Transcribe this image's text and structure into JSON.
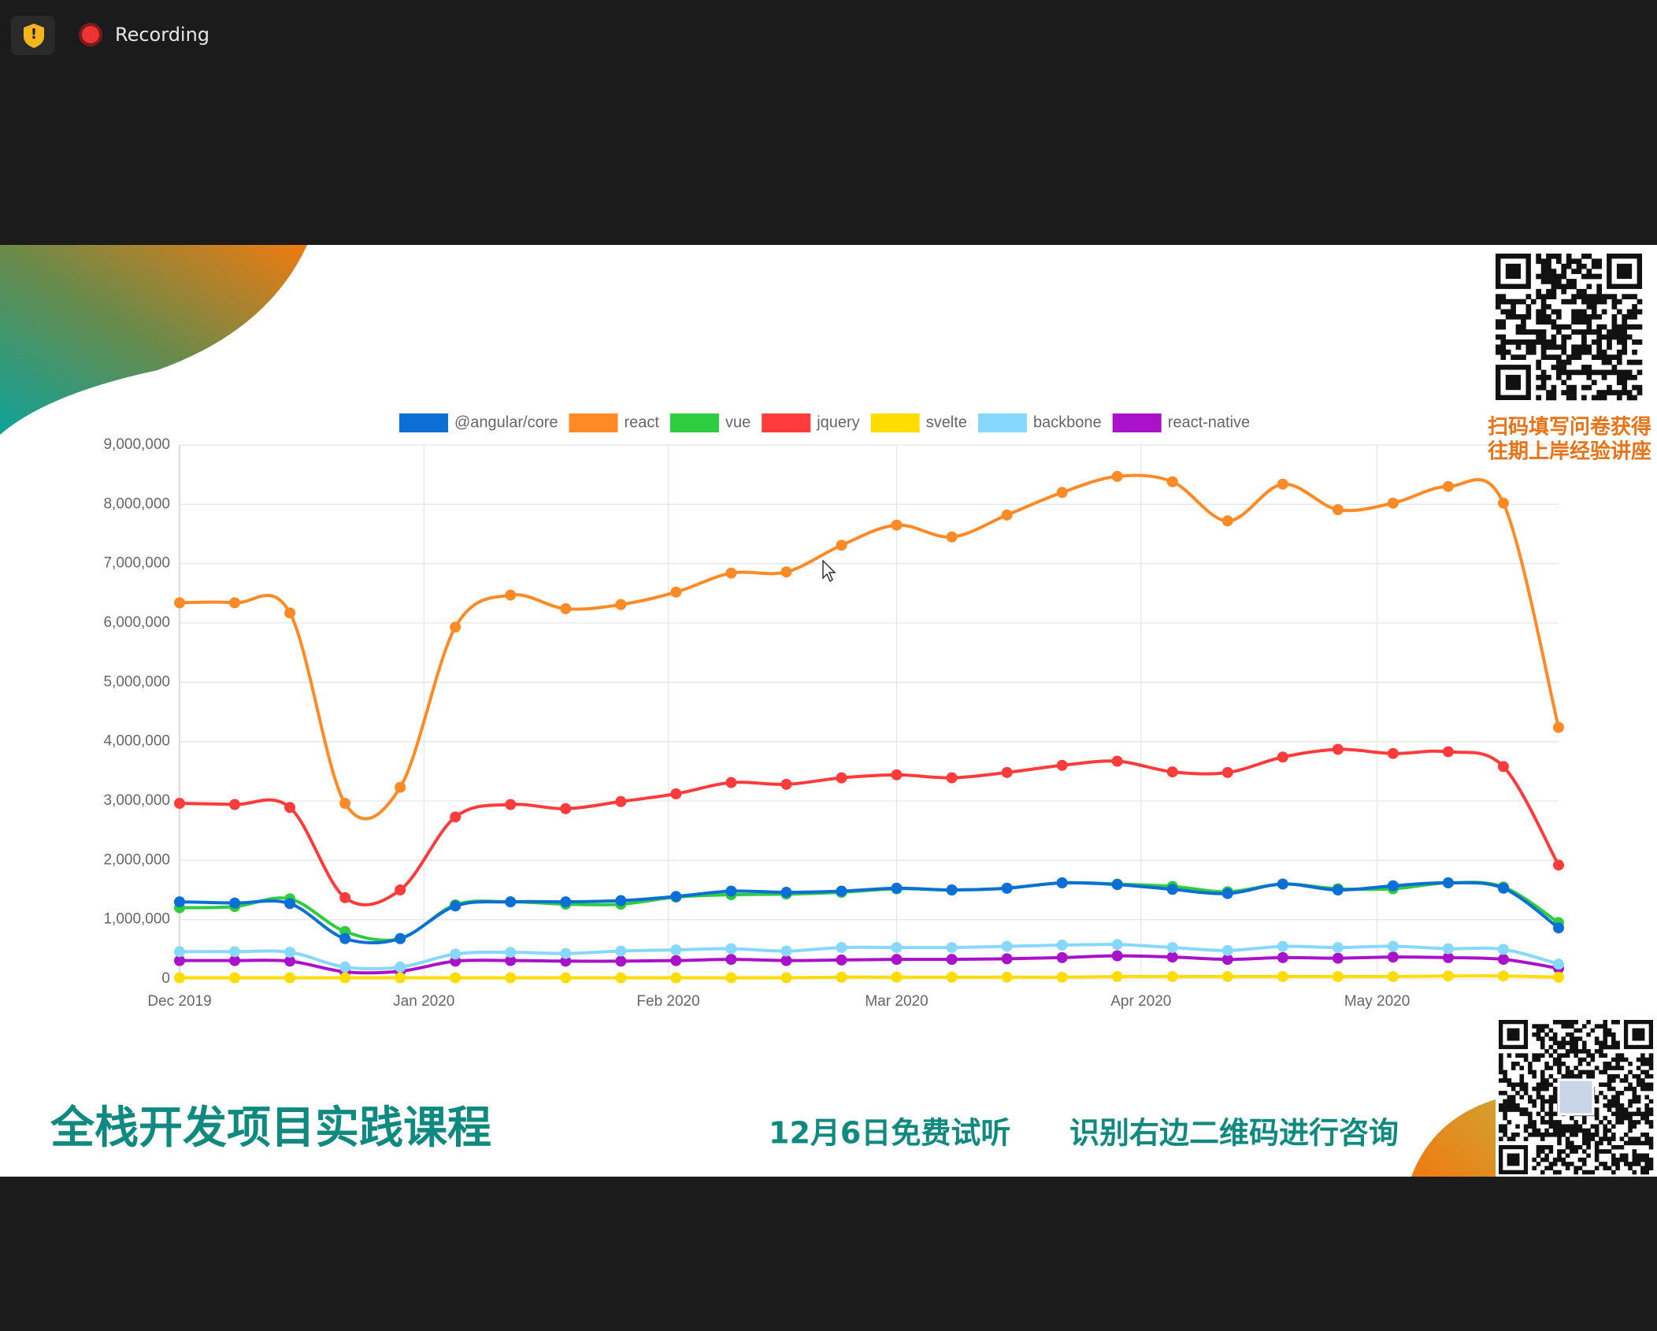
{
  "toolbar": {
    "status": "Recording"
  },
  "qr_caption": [
    "扫码填写问卷获得",
    "往期上岸经验讲座"
  ],
  "footer": {
    "course": "全栈开发项目实践课程",
    "trial": "12月6日免费试听",
    "contact": "识别右边二维码进行咨询"
  },
  "chart_data": {
    "type": "line",
    "x": [
      0,
      1,
      2,
      3,
      4,
      5,
      6,
      7,
      8,
      9,
      10,
      11,
      12,
      13,
      14,
      15,
      16,
      17,
      18,
      19,
      20,
      21,
      22,
      23,
      24,
      25
    ],
    "xlim": [
      0,
      25
    ],
    "xticks": [
      {
        "value": 0,
        "label": "Dec 2019"
      },
      {
        "value": 4.43,
        "label": "Jan 2020"
      },
      {
        "value": 8.86,
        "label": "Feb 2020"
      },
      {
        "value": 13,
        "label": "Mar 2020"
      },
      {
        "value": 17.43,
        "label": "Apr 2020"
      },
      {
        "value": 21.71,
        "label": "May 2020"
      }
    ],
    "ylim": [
      0,
      9000000
    ],
    "yticks": [
      0,
      {
        "value": 1000000,
        "label": "1,000,000"
      },
      {
        "value": 2000000,
        "label": "2,000,000"
      },
      {
        "value": 3000000,
        "label": "3,000,000"
      },
      {
        "value": 4000000,
        "label": "4,000,000"
      },
      {
        "value": 5000000,
        "label": "5,000,000"
      },
      {
        "value": 6000000,
        "label": "6,000,000"
      },
      {
        "value": 7000000,
        "label": "7,000,000"
      },
      {
        "value": 8000000,
        "label": "8,000,000"
      },
      {
        "value": 9000000,
        "label": "9,000,000"
      }
    ],
    "grid": true,
    "legend": "top",
    "series": [
      {
        "name": "@angular/core",
        "color": "#0b6fd6",
        "values": [
          1300000,
          1280000,
          1270000,
          680000,
          680000,
          1230000,
          1300000,
          1300000,
          1320000,
          1390000,
          1480000,
          1460000,
          1480000,
          1530000,
          1500000,
          1530000,
          1620000,
          1590000,
          1510000,
          1440000,
          1600000,
          1500000,
          1570000,
          1620000,
          1530000,
          860000
        ]
      },
      {
        "name": "react",
        "color": "#ff8a26",
        "values": [
          6340000,
          6340000,
          6170000,
          2960000,
          3230000,
          5930000,
          6470000,
          6240000,
          6310000,
          6520000,
          6840000,
          6860000,
          7310000,
          7650000,
          7450000,
          7820000,
          8200000,
          8470000,
          8380000,
          7720000,
          8340000,
          7910000,
          8020000,
          8300000,
          8020000,
          4240000
        ]
      },
      {
        "name": "vue",
        "color": "#2ecc40",
        "values": [
          1200000,
          1220000,
          1350000,
          800000,
          680000,
          1250000,
          1300000,
          1260000,
          1260000,
          1380000,
          1420000,
          1430000,
          1460000,
          1520000,
          1500000,
          1530000,
          1620000,
          1600000,
          1560000,
          1470000,
          1600000,
          1520000,
          1520000,
          1620000,
          1550000,
          950000
        ]
      },
      {
        "name": "jquery",
        "color": "#ff3b3b",
        "values": [
          2960000,
          2940000,
          2890000,
          1370000,
          1500000,
          2730000,
          2940000,
          2870000,
          2990000,
          3120000,
          3310000,
          3280000,
          3390000,
          3440000,
          3390000,
          3480000,
          3600000,
          3670000,
          3490000,
          3480000,
          3740000,
          3870000,
          3800000,
          3830000,
          3580000,
          1920000
        ]
      },
      {
        "name": "svelte",
        "color": "#ffdd00",
        "values": [
          20000,
          20000,
          20000,
          20000,
          20000,
          20000,
          20000,
          20000,
          20000,
          20000,
          20000,
          20000,
          30000,
          30000,
          30000,
          30000,
          30000,
          40000,
          40000,
          40000,
          40000,
          40000,
          40000,
          50000,
          50000,
          30000
        ]
      },
      {
        "name": "backbone",
        "color": "#87d8ff",
        "values": [
          460000,
          460000,
          450000,
          200000,
          200000,
          420000,
          450000,
          430000,
          470000,
          490000,
          510000,
          470000,
          530000,
          530000,
          530000,
          550000,
          570000,
          580000,
          530000,
          480000,
          550000,
          530000,
          550000,
          510000,
          500000,
          250000
        ]
      },
      {
        "name": "react-native",
        "color": "#a912c9",
        "values": [
          310000,
          310000,
          300000,
          120000,
          130000,
          300000,
          310000,
          300000,
          300000,
          310000,
          330000,
          310000,
          320000,
          330000,
          330000,
          340000,
          360000,
          390000,
          370000,
          330000,
          360000,
          350000,
          370000,
          360000,
          330000,
          180000
        ]
      }
    ]
  }
}
